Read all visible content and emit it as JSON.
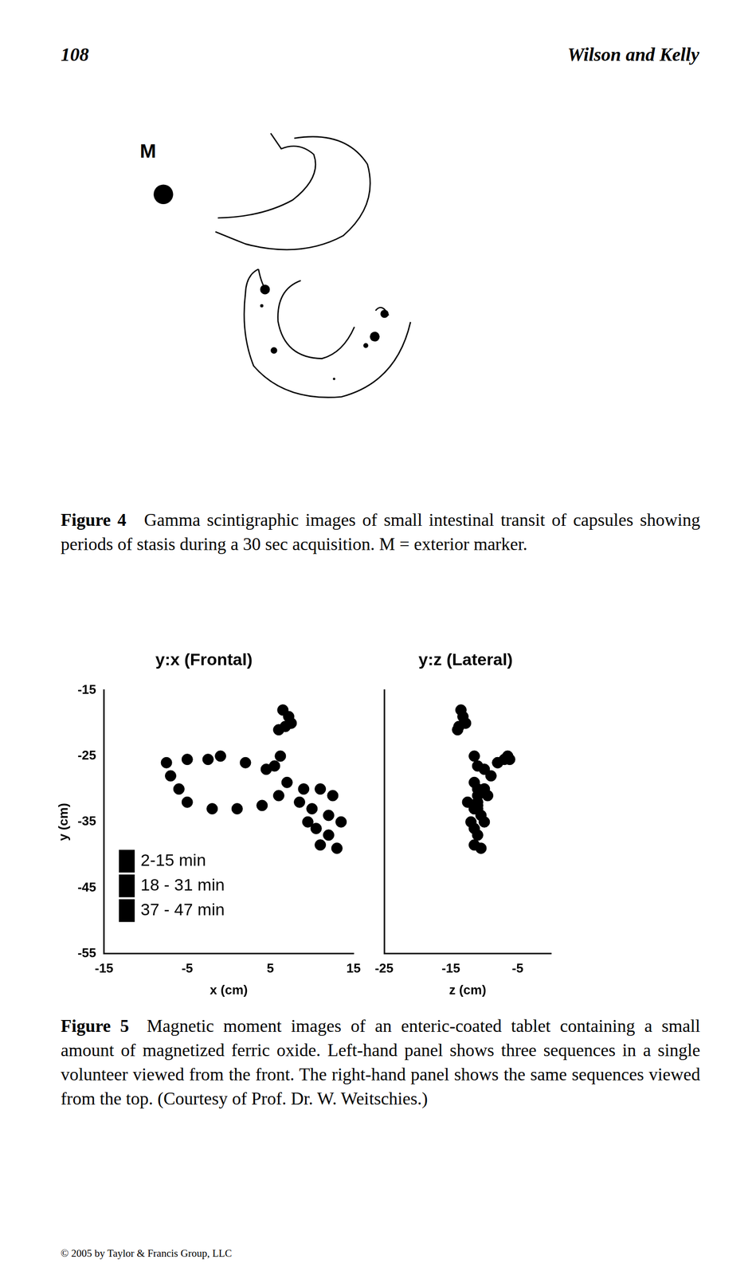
{
  "header": {
    "page_number": "108",
    "running_head": "Wilson and Kelly"
  },
  "figure4": {
    "marker_label": "M",
    "label": "Figure 4",
    "caption": "Gamma scintigraphic images of small intestinal transit of capsules showing periods of stasis during a 30 sec acquisition. M = exterior marker."
  },
  "figure5": {
    "label": "Figure 5",
    "caption": "Magnetic moment images of an enteric-coated tablet containing a small amount of magnetized ferric oxide. Left-hand panel shows three sequences in a single volunteer viewed from the front. The right-hand panel shows the same sequences viewed from the top. (Courtesy of Prof. Dr. W. Weitschies.)"
  },
  "chart_data": [
    {
      "type": "scatter",
      "title": "y:x (Frontal)",
      "xlabel": "x (cm)",
      "ylabel": "y (cm)",
      "xlim": [
        -15,
        15
      ],
      "xticks": [
        -15,
        -5,
        5,
        15
      ],
      "ylim": [
        -55,
        -15
      ],
      "yticks": [
        -55,
        -45,
        -35,
        -25,
        -15
      ],
      "grid": false,
      "legend": "lower left",
      "series": [
        {
          "name": "2-15 min",
          "color": "#000000",
          "marker": "circle",
          "x": [
            6.5,
            7.2,
            6.8,
            6.0,
            7.5
          ],
          "y": [
            -18,
            -19,
            -20.5,
            -21,
            -20
          ]
        },
        {
          "name": "18 - 31 min",
          "color": "#000000",
          "marker": "circle",
          "x": [
            6.2,
            5.5,
            4.5,
            2,
            -1,
            -2.5,
            -5,
            -7.5,
            -7,
            -6,
            -5,
            -2,
            1,
            4,
            6,
            7
          ],
          "y": [
            -25,
            -26.5,
            -27,
            -26,
            -25,
            -25.5,
            -25.5,
            -26,
            -28,
            -30,
            -32,
            -33,
            -33,
            -32.5,
            -31,
            -29
          ]
        },
        {
          "name": "37 - 47 min",
          "color": "#000000",
          "marker": "circle",
          "x": [
            9,
            11,
            12.5,
            10,
            12,
            13.5,
            10.5,
            12,
            11,
            13,
            9.5,
            8.5
          ],
          "y": [
            -30,
            -30,
            -31,
            -33,
            -34,
            -35,
            -36,
            -37,
            -38.5,
            -39,
            -35,
            -32
          ]
        }
      ]
    },
    {
      "type": "scatter",
      "title": "y:z (Lateral)",
      "xlabel": "z (cm)",
      "xlim": [
        -25,
        0
      ],
      "xticks": [
        -25,
        -15,
        -5
      ],
      "ylim": [
        -55,
        -15
      ],
      "grid": false,
      "tick_labels": "x",
      "series": [
        {
          "color": "#000000",
          "marker": "circle",
          "x": [
            -13.5,
            -13.2,
            -13.8,
            -14,
            -12.8
          ],
          "y": [
            -18,
            -19,
            -20.5,
            -21,
            -20
          ]
        },
        {
          "color": "#000000",
          "marker": "circle",
          "x": [
            -11.5,
            -11,
            -10,
            -8,
            -6.5,
            -6.2,
            -7,
            -8,
            -9,
            -10,
            -11,
            -11.5,
            -11.5,
            -11,
            -11,
            -11.5
          ],
          "y": [
            -25,
            -26.5,
            -27,
            -26,
            -25,
            -25.5,
            -25.5,
            -26,
            -28,
            -30,
            -32,
            -33,
            -33,
            -32.5,
            -31,
            -29
          ]
        },
        {
          "color": "#000000",
          "marker": "circle",
          "x": [
            -11,
            -10,
            -9.5,
            -11,
            -10.5,
            -10,
            -11.5,
            -11,
            -11.5,
            -10.5,
            -12,
            -12.5
          ],
          "y": [
            -30,
            -30,
            -31,
            -33,
            -34,
            -35,
            -36,
            -37,
            -38.5,
            -39,
            -35,
            -32
          ]
        }
      ]
    }
  ],
  "footer": "© 2005 by Taylor & Francis Group, LLC"
}
